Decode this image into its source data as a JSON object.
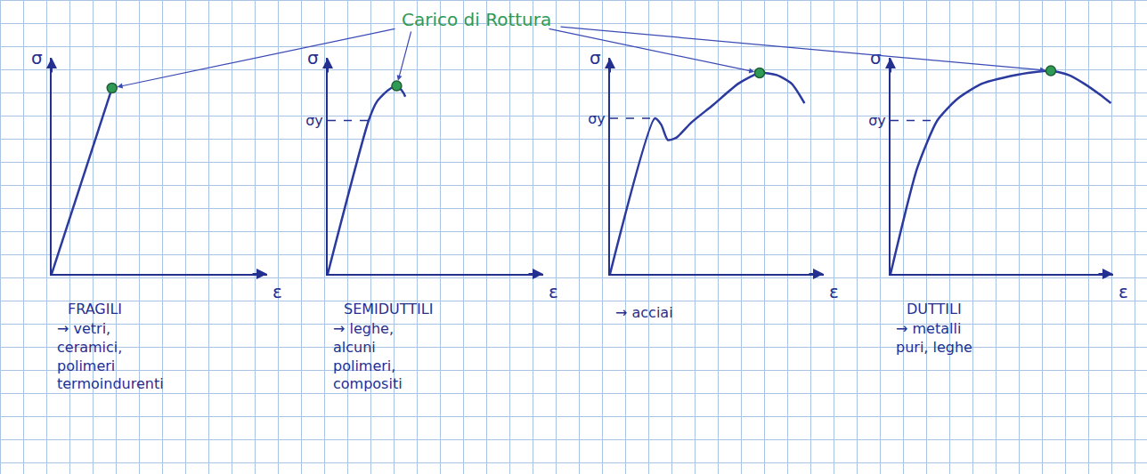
{
  "annotation": {
    "text": "Carico di Rottura",
    "color": "#2f9a55"
  },
  "chart_data": [
    {
      "type": "line",
      "color": "#2b3a9e",
      "x": [
        0,
        2.8
      ],
      "values": [
        0,
        8.6
      ],
      "xlim": [
        0,
        10
      ],
      "ylim": [
        0,
        10
      ],
      "xticks": [],
      "yticks": [],
      "xlabel": "ε",
      "ylabel": "σ",
      "tick_labels": false,
      "grid": false,
      "break_point": {
        "x": 2.8,
        "y": 8.6
      },
      "caption": "FRAGILI",
      "examples": "→ vetri, ceramici, polimeri termoindurenti"
    },
    {
      "type": "line",
      "color": "#2b3a9e",
      "x": [
        0,
        1.9,
        2.3,
        2.8,
        3.2,
        3.5,
        3.6
      ],
      "values": [
        0,
        7.1,
        8.0,
        8.5,
        8.7,
        8.4,
        8.2
      ],
      "xlim": [
        0,
        10
      ],
      "ylim": [
        0,
        10
      ],
      "xticks": [],
      "yticks": [
        {
          "value": 7.1,
          "label": "σy"
        }
      ],
      "xlabel": "ε",
      "ylabel": "σ",
      "tick_labels": "y",
      "grid": false,
      "break_point": {
        "x": 3.2,
        "y": 8.7
      },
      "caption": "SEMIDUTTILI",
      "examples": "→ leghe, alcuni polimeri, compositi"
    },
    {
      "type": "line",
      "color": "#2b3a9e",
      "x": [
        0,
        2.1,
        2.4,
        2.7,
        3.1,
        3.8,
        4.8,
        6.0,
        7.0,
        7.8,
        8.5,
        9.1
      ],
      "values": [
        0,
        7.2,
        6.9,
        6.2,
        6.3,
        7.0,
        7.8,
        8.8,
        9.3,
        9.2,
        8.8,
        7.9
      ],
      "xlim": [
        0,
        10
      ],
      "ylim": [
        0,
        10
      ],
      "xticks": [],
      "yticks": [
        {
          "value": 7.2,
          "label": "σy"
        }
      ],
      "xlabel": "ε",
      "ylabel": "σ",
      "tick_labels": "y",
      "grid": false,
      "break_point": {
        "x": 7.0,
        "y": 9.3
      },
      "examples": "→ acciai"
    },
    {
      "type": "line",
      "color": "#2b3a9e",
      "x": [
        0,
        1.2,
        2.1,
        3.0,
        4.1,
        5.6,
        7.2,
        8.0,
        8.7,
        9.4,
        9.9
      ],
      "values": [
        0,
        4.9,
        7.1,
        8.1,
        8.8,
        9.2,
        9.4,
        9.2,
        8.8,
        8.3,
        7.9
      ],
      "xlim": [
        0,
        10
      ],
      "ylim": [
        0,
        10
      ],
      "xticks": [],
      "yticks": [
        {
          "value": 7.1,
          "label": "σy"
        }
      ],
      "xlabel": "ε",
      "ylabel": "σ",
      "tick_labels": "y",
      "grid": false,
      "break_point": {
        "x": 7.2,
        "y": 9.4
      },
      "caption": "DUTTILI",
      "examples": "→ metalli puri, leghe"
    }
  ]
}
